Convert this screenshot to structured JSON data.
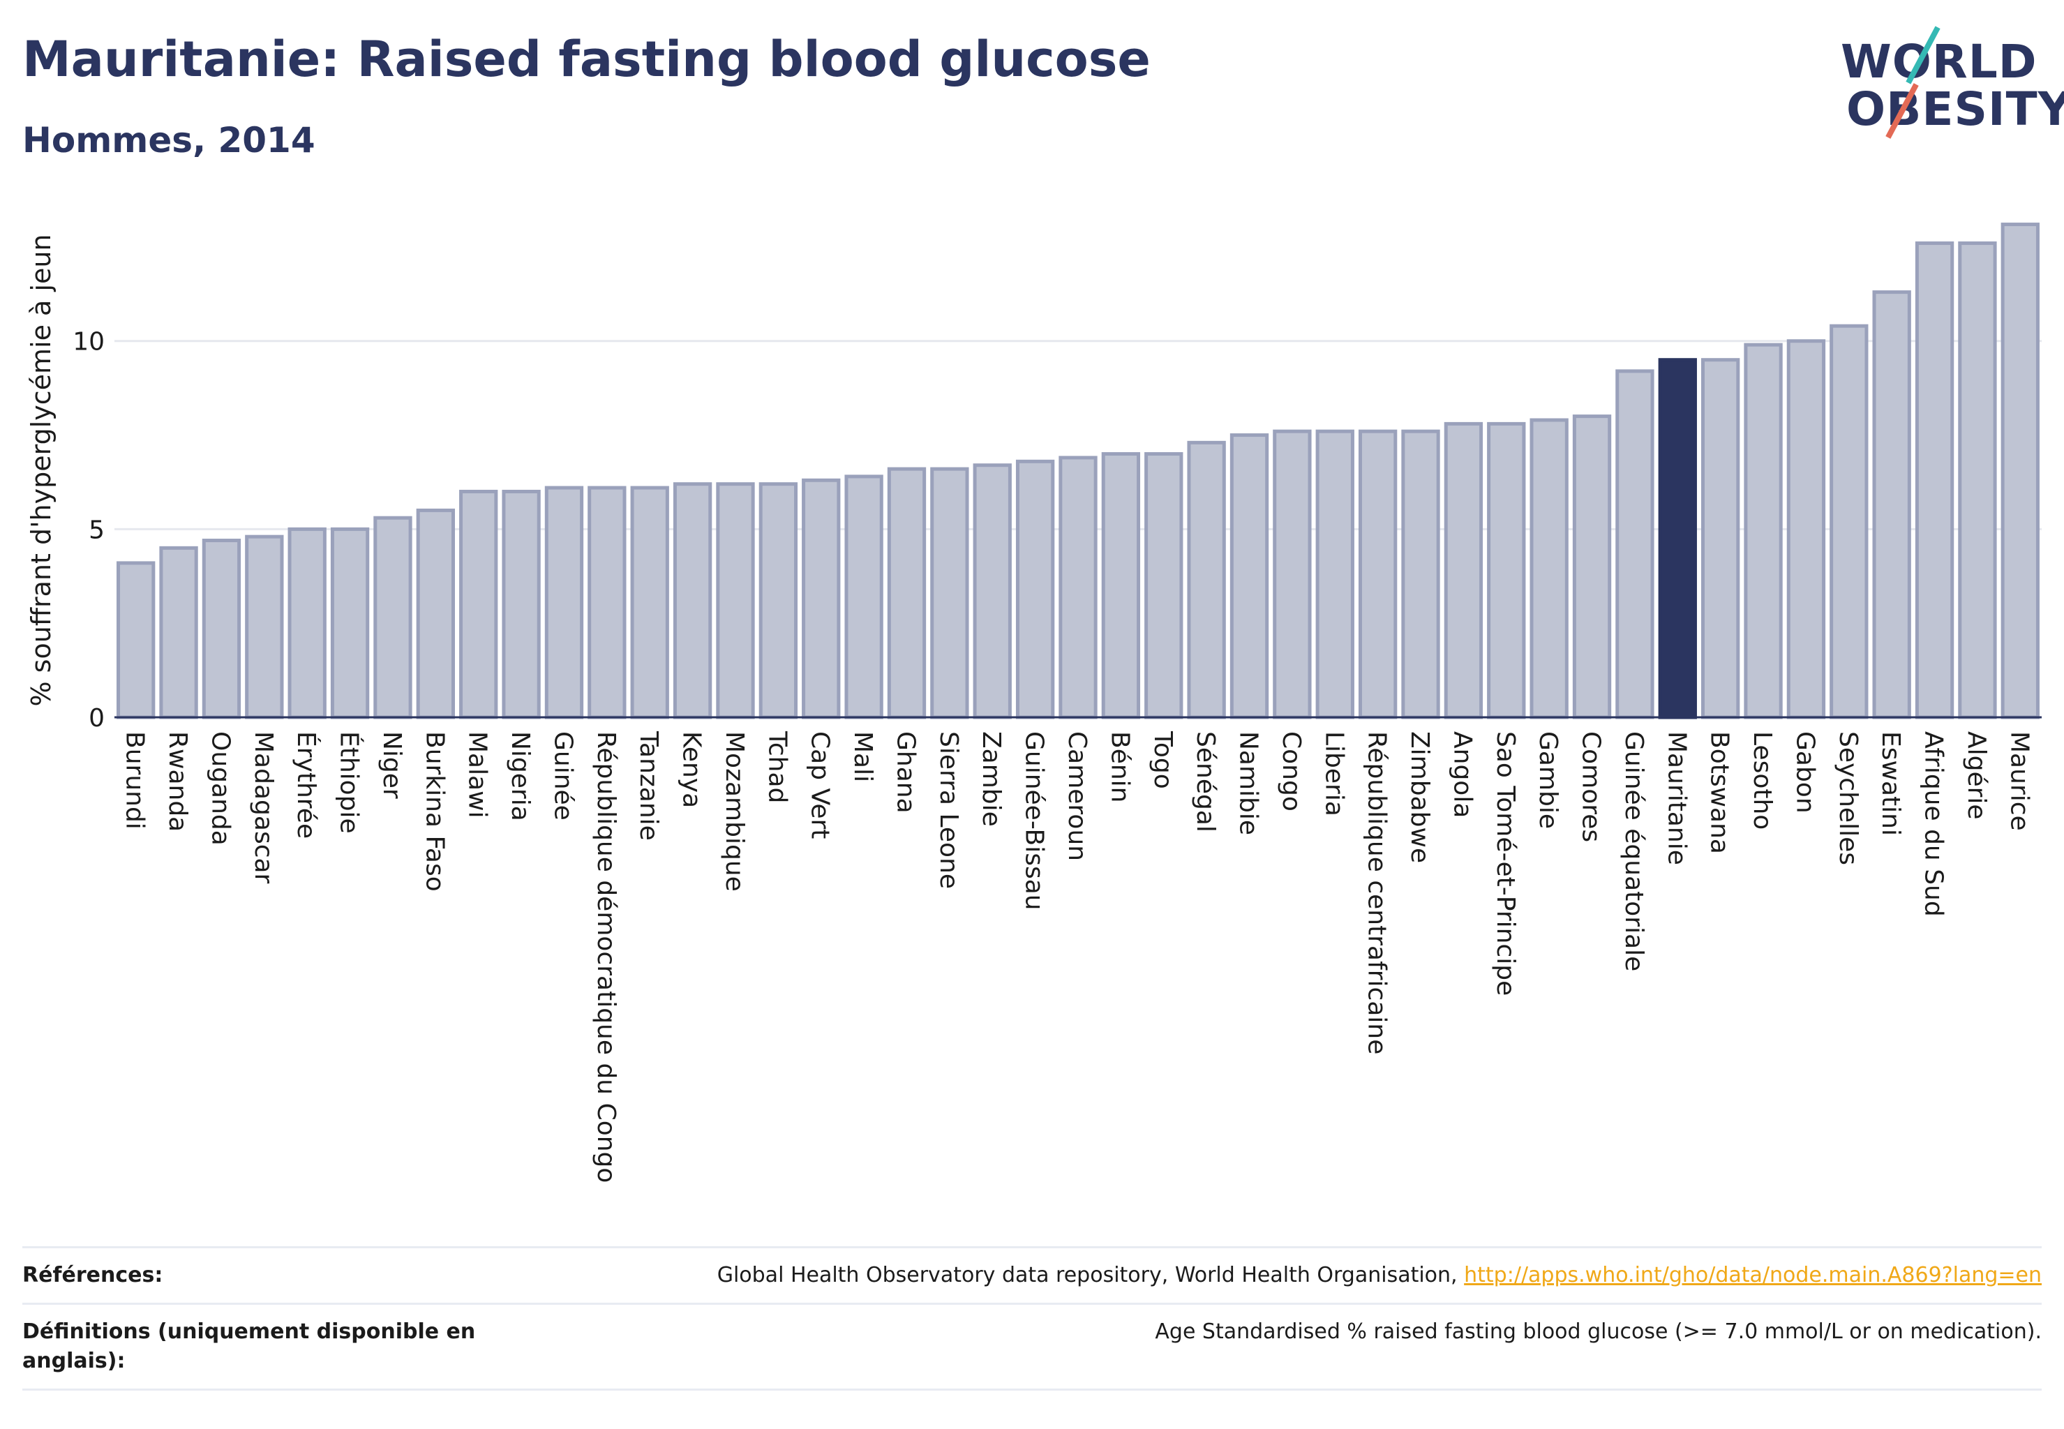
{
  "header": {
    "title": "Mauritanie: Raised fasting blood glucose",
    "subtitle": "Hommes, 2014"
  },
  "logo": {
    "line1": "WORLD",
    "line2": "OBESITY"
  },
  "colors": {
    "bar_default": "#bfc4d3",
    "bar_outline": "#9aa1bb",
    "bar_highlight": "#2b3560",
    "title": "#2b3560",
    "grid": "#e6e8ee",
    "link": "#f0a818"
  },
  "chart_data": {
    "type": "bar",
    "ylabel": "% souffrant d'hyperglycémie à jeun",
    "xlabel": "",
    "ylim": [
      0,
      13.5
    ],
    "yticks": [
      0,
      5,
      10
    ],
    "grid": true,
    "highlight": "Mauritanie",
    "categories": [
      "Burundi",
      "Rwanda",
      "Ouganda",
      "Madagascar",
      "Érythrée",
      "Éthiopie",
      "Niger",
      "Burkina Faso",
      "Malawi",
      "Nigeria",
      "Guinée",
      "République démocratique du Congo",
      "Tanzanie",
      "Kenya",
      "Mozambique",
      "Tchad",
      "Cap Vert",
      "Mali",
      "Ghana",
      "Sierra Leone",
      "Zambie",
      "Guinée-Bissau",
      "Cameroun",
      "Bénin",
      "Togo",
      "Sénégal",
      "Namibie",
      "Congo",
      "Liberia",
      "République centrafricaine",
      "Zimbabwe",
      "Angola",
      "Sao Tomé-et-Principe",
      "Gambie",
      "Comores",
      "Guinée équatoriale",
      "Mauritanie",
      "Botswana",
      "Lesotho",
      "Gabon",
      "Seychelles",
      "Eswatini",
      "Afrique du Sud",
      "Algérie",
      "Maurice"
    ],
    "values": [
      4.1,
      4.5,
      4.7,
      4.8,
      5.0,
      5.0,
      5.3,
      5.5,
      6.0,
      6.0,
      6.1,
      6.1,
      6.1,
      6.2,
      6.2,
      6.2,
      6.3,
      6.4,
      6.6,
      6.6,
      6.7,
      6.8,
      6.9,
      7.0,
      7.0,
      7.3,
      7.5,
      7.6,
      7.6,
      7.6,
      7.6,
      7.8,
      7.8,
      7.9,
      8.0,
      9.2,
      9.5,
      9.5,
      9.9,
      10.0,
      10.4,
      11.3,
      12.6,
      12.6,
      13.1
    ]
  },
  "footer": {
    "references_label": "Références:",
    "references_text": "Global Health Observatory data repository, World Health Organisation,",
    "references_link": "http://apps.who.int/gho/data/node.main.A869?lang=en",
    "definitions_label": "Définitions (uniquement disponible en anglais):",
    "definitions_text": "Age Standardised % raised fasting blood glucose (>= 7.0 mmol/L or on medication)."
  }
}
